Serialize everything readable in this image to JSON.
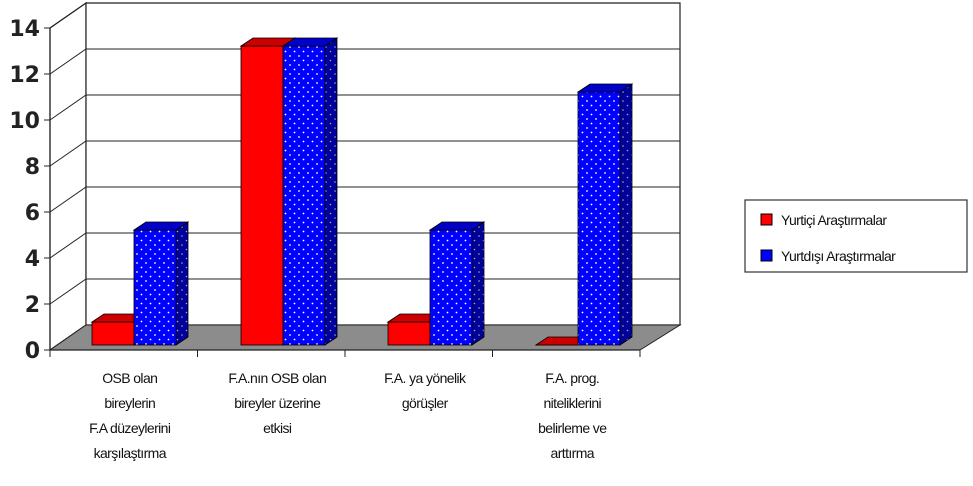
{
  "chart_data": {
    "type": "bar",
    "categories": [
      [
        "OSB olan",
        "bireylerin",
        "F.A düzeylerini",
        "karşılaştırma"
      ],
      [
        "F.A.nın OSB olan",
        "bireyler üzerine",
        "etkisi"
      ],
      [
        "F.A. ya yönelik",
        "görüşler"
      ],
      [
        "F.A. prog.",
        "niteliklerini",
        "belirleme ve",
        "arttırma"
      ]
    ],
    "series": [
      {
        "name": "Yurtiçi Araştırmalar",
        "values": [
          1,
          13,
          1,
          0
        ],
        "color": "#ff0000"
      },
      {
        "name": "Yurtdışı Araştırmalar",
        "values": [
          5,
          13,
          5,
          11
        ],
        "color": "#0000ff"
      }
    ],
    "y_ticks": [
      "0",
      "2",
      "4",
      "6",
      "8",
      "10",
      "12",
      "14"
    ],
    "ylim": [
      0,
      14
    ],
    "legend_position": "right",
    "grid": true,
    "style": "3d-clustered-column"
  }
}
